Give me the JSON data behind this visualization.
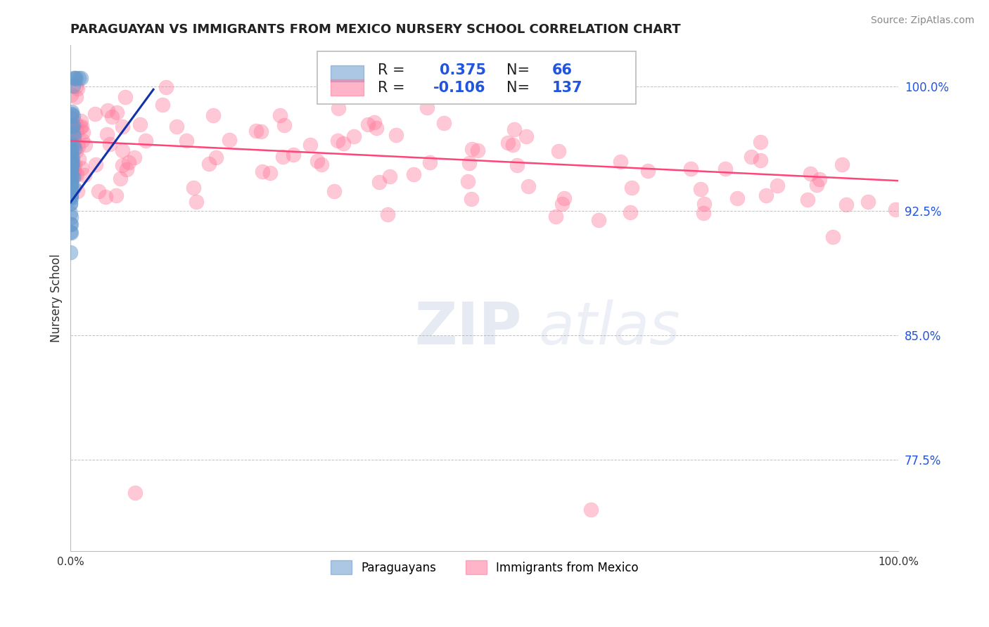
{
  "title": "PARAGUAYAN VS IMMIGRANTS FROM MEXICO NURSERY SCHOOL CORRELATION CHART",
  "source": "Source: ZipAtlas.com",
  "ylabel": "Nursery School",
  "xlim": [
    0.0,
    1.0
  ],
  "ylim": [
    0.72,
    1.025
  ],
  "yticks": [
    0.775,
    0.85,
    0.925,
    1.0
  ],
  "ytick_labels": [
    "77.5%",
    "85.0%",
    "92.5%",
    "100.0%"
  ],
  "xticks": [
    0.0,
    0.25,
    0.5,
    0.75,
    1.0
  ],
  "xtick_labels": [
    "0.0%",
    "",
    "",
    "",
    "100.0%"
  ],
  "blue_color": "#6699CC",
  "pink_color": "#FF7799",
  "trendline_blue_color": "#1133AA",
  "trendline_pink_color": "#FF4477",
  "watermark_zip": "ZIP",
  "watermark_atlas": "atlas",
  "blue_label": "Paraguayans",
  "pink_label": "Immigrants from Mexico",
  "blue_R": "0.375",
  "blue_N": "66",
  "pink_R": "-0.106",
  "pink_N": "137",
  "legend_text_color": "#222222",
  "legend_value_color": "#2255DD",
  "ytick_color": "#2255DD",
  "source_color": "#888888",
  "title_color": "#222222"
}
